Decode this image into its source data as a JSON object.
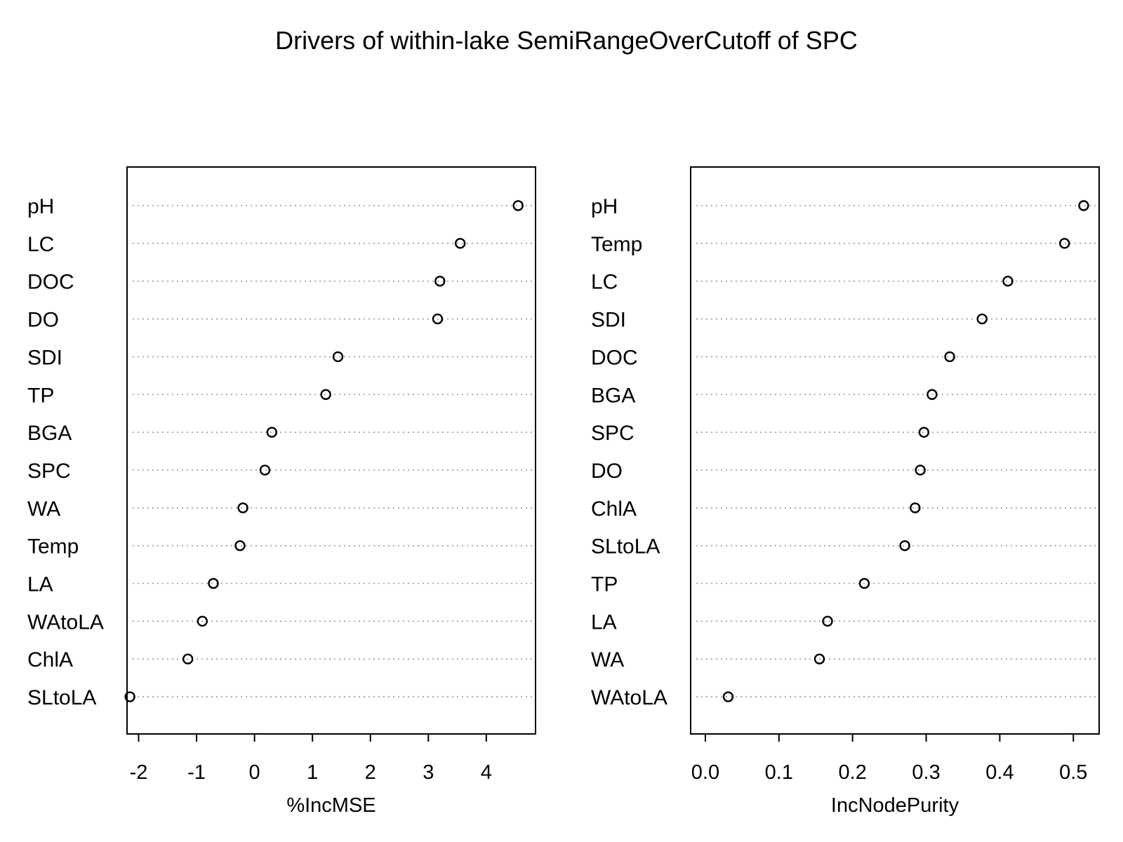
{
  "chart_data": {
    "type": "scatter",
    "title": "Drivers of within-lake SemiRangeOverCutoff of SPC",
    "grid": "dotted horizontal guide lines",
    "panels": [
      {
        "xlabel": "%IncMSE",
        "ylabel": "",
        "xlim": [
          -2.2,
          4.85
        ],
        "xticks": [
          -2,
          -1,
          0,
          1,
          2,
          3,
          4
        ],
        "tick_labels": [
          "-2",
          "-1",
          "0",
          "1",
          "2",
          "3",
          "4"
        ],
        "categories": [
          "pH",
          "LC",
          "DOC",
          "DO",
          "SDI",
          "TP",
          "BGA",
          "SPC",
          "WA",
          "Temp",
          "LA",
          "WAtoLA",
          "ChlA",
          "SLtoLA"
        ],
        "values": [
          4.55,
          3.55,
          3.2,
          3.16,
          1.44,
          1.23,
          0.3,
          0.18,
          -0.2,
          -0.25,
          -0.71,
          -0.9,
          -1.15,
          -2.15
        ]
      },
      {
        "xlabel": "IncNodePurity",
        "ylabel": "",
        "xlim": [
          -0.02,
          0.535
        ],
        "xticks": [
          0.0,
          0.1,
          0.2,
          0.3,
          0.4,
          0.5
        ],
        "tick_labels": [
          "0.0",
          "0.1",
          "0.2",
          "0.3",
          "0.4",
          "0.5"
        ],
        "categories": [
          "pH",
          "Temp",
          "LC",
          "SDI",
          "DOC",
          "BGA",
          "SPC",
          "DO",
          "ChlA",
          "SLtoLA",
          "TP",
          "LA",
          "WA",
          "WAtoLA"
        ],
        "values": [
          0.514,
          0.488,
          0.411,
          0.376,
          0.332,
          0.308,
          0.297,
          0.292,
          0.285,
          0.271,
          0.216,
          0.166,
          0.155,
          0.031
        ]
      }
    ]
  }
}
